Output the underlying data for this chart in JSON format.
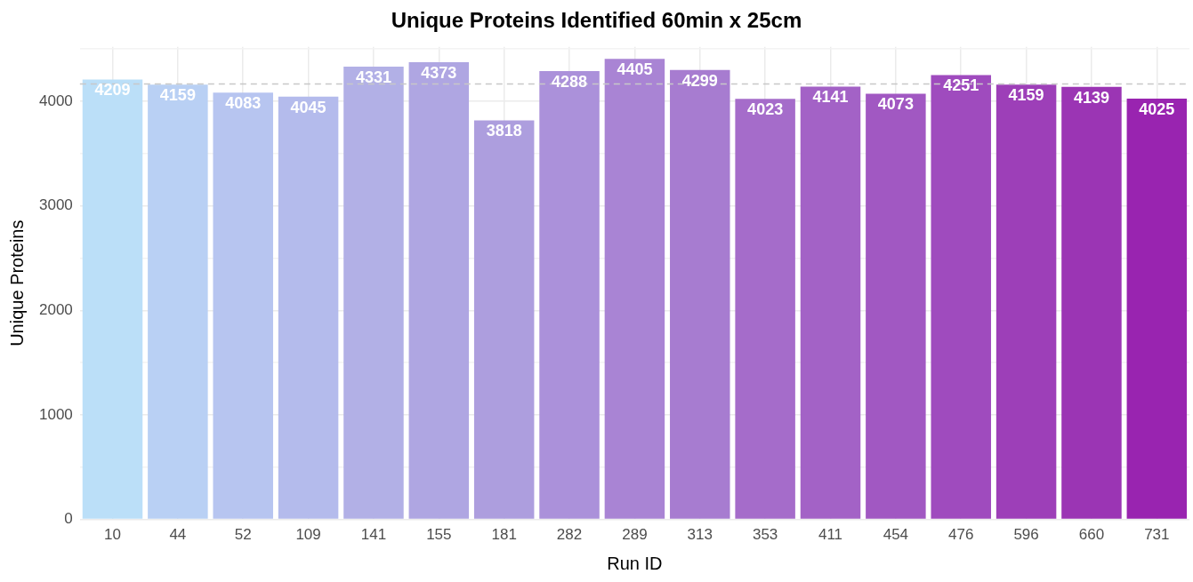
{
  "chart_data": {
    "type": "bar",
    "title": "Unique Proteins Identified 60min x 25cm",
    "xlabel": "Run ID",
    "ylabel": "Unique Proteins",
    "categories": [
      "10",
      "44",
      "52",
      "109",
      "141",
      "155",
      "181",
      "282",
      "289",
      "313",
      "353",
      "411",
      "454",
      "476",
      "596",
      "660",
      "731"
    ],
    "values": [
      4209,
      4159,
      4083,
      4045,
      4331,
      4373,
      3818,
      4288,
      4405,
      4299,
      4023,
      4141,
      4073,
      4251,
      4159,
      4139,
      4025
    ],
    "colors": [
      "#bbdff8",
      "#b9d0f4",
      "#b7c5f0",
      "#b4bbec",
      "#b2b0e6",
      "#afa6e2",
      "#ad9ede",
      "#ab91da",
      "#a984d4",
      "#a77cd0",
      "#a56cca",
      "#a362c6",
      "#a158c2",
      "#9f4bbe",
      "#9d3fb8",
      "#9b35b4",
      "#9924b0"
    ],
    "ylim": [
      0,
      4520
    ],
    "yticks": [
      0,
      {
        "value": 500,
        "label": null
      },
      1000,
      {
        "value": 1500,
        "label": null
      },
      2000,
      {
        "value": 2500,
        "label": null
      },
      3000,
      {
        "value": 3500,
        "label": null
      },
      4000,
      {
        "value": 4500,
        "label": null
      }
    ],
    "ref_lines": [
      {
        "axis": "y",
        "value": 4166,
        "color": "#c8c8c8",
        "line_style": "dashed"
      }
    ],
    "data_labels": true,
    "grid": true,
    "legend": false
  }
}
